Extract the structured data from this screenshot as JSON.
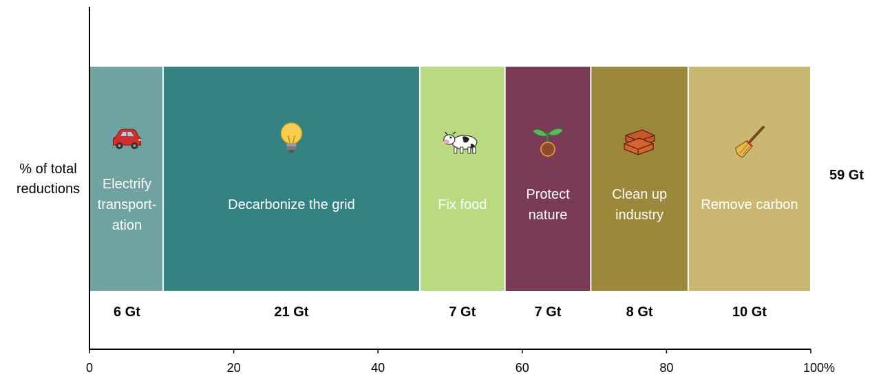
{
  "chart_data": {
    "type": "bar",
    "orientation": "horizontal-stacked-100",
    "ylabel": "% of total reductions",
    "total_label": "59 Gt",
    "xlim": [
      0,
      100
    ],
    "xticks": [
      "0",
      "20",
      "40",
      "60",
      "80",
      "100%"
    ],
    "xtick_values": [
      0,
      20,
      40,
      60,
      80,
      100
    ],
    "grid": false,
    "segments": [
      {
        "label": [
          "Electrify",
          "transport-",
          "ation"
        ],
        "value_label": "6 Gt",
        "value": 6,
        "start": 0,
        "end": 10.2,
        "color": "#6fa3a2",
        "icon": "car-icon"
      },
      {
        "label": [
          "Decarbonize the grid"
        ],
        "value_label": "21 Gt",
        "value": 21,
        "start": 10.2,
        "end": 45.8,
        "color": "#338282",
        "icon": "lightbulb-icon"
      },
      {
        "label": [
          "Fix food"
        ],
        "value_label": "7 Gt",
        "value": 7,
        "start": 45.8,
        "end": 57.6,
        "color": "#b9da7e",
        "icon": "cow-icon"
      },
      {
        "label": [
          "Protect",
          "nature"
        ],
        "value_label": "7 Gt",
        "value": 7,
        "start": 57.6,
        "end": 69.5,
        "color": "#7b3b57",
        "icon": "seedling-icon"
      },
      {
        "label": [
          "Clean up",
          "industry"
        ],
        "value_label": "8 Gt",
        "value": 8,
        "start": 69.5,
        "end": 83.0,
        "color": "#9b883a",
        "icon": "bricks-icon"
      },
      {
        "label": [
          "Remove carbon"
        ],
        "value_label": "10 Gt",
        "value": 10,
        "start": 83.0,
        "end": 100,
        "color": "#c9b772",
        "icon": "broom-icon"
      }
    ]
  }
}
